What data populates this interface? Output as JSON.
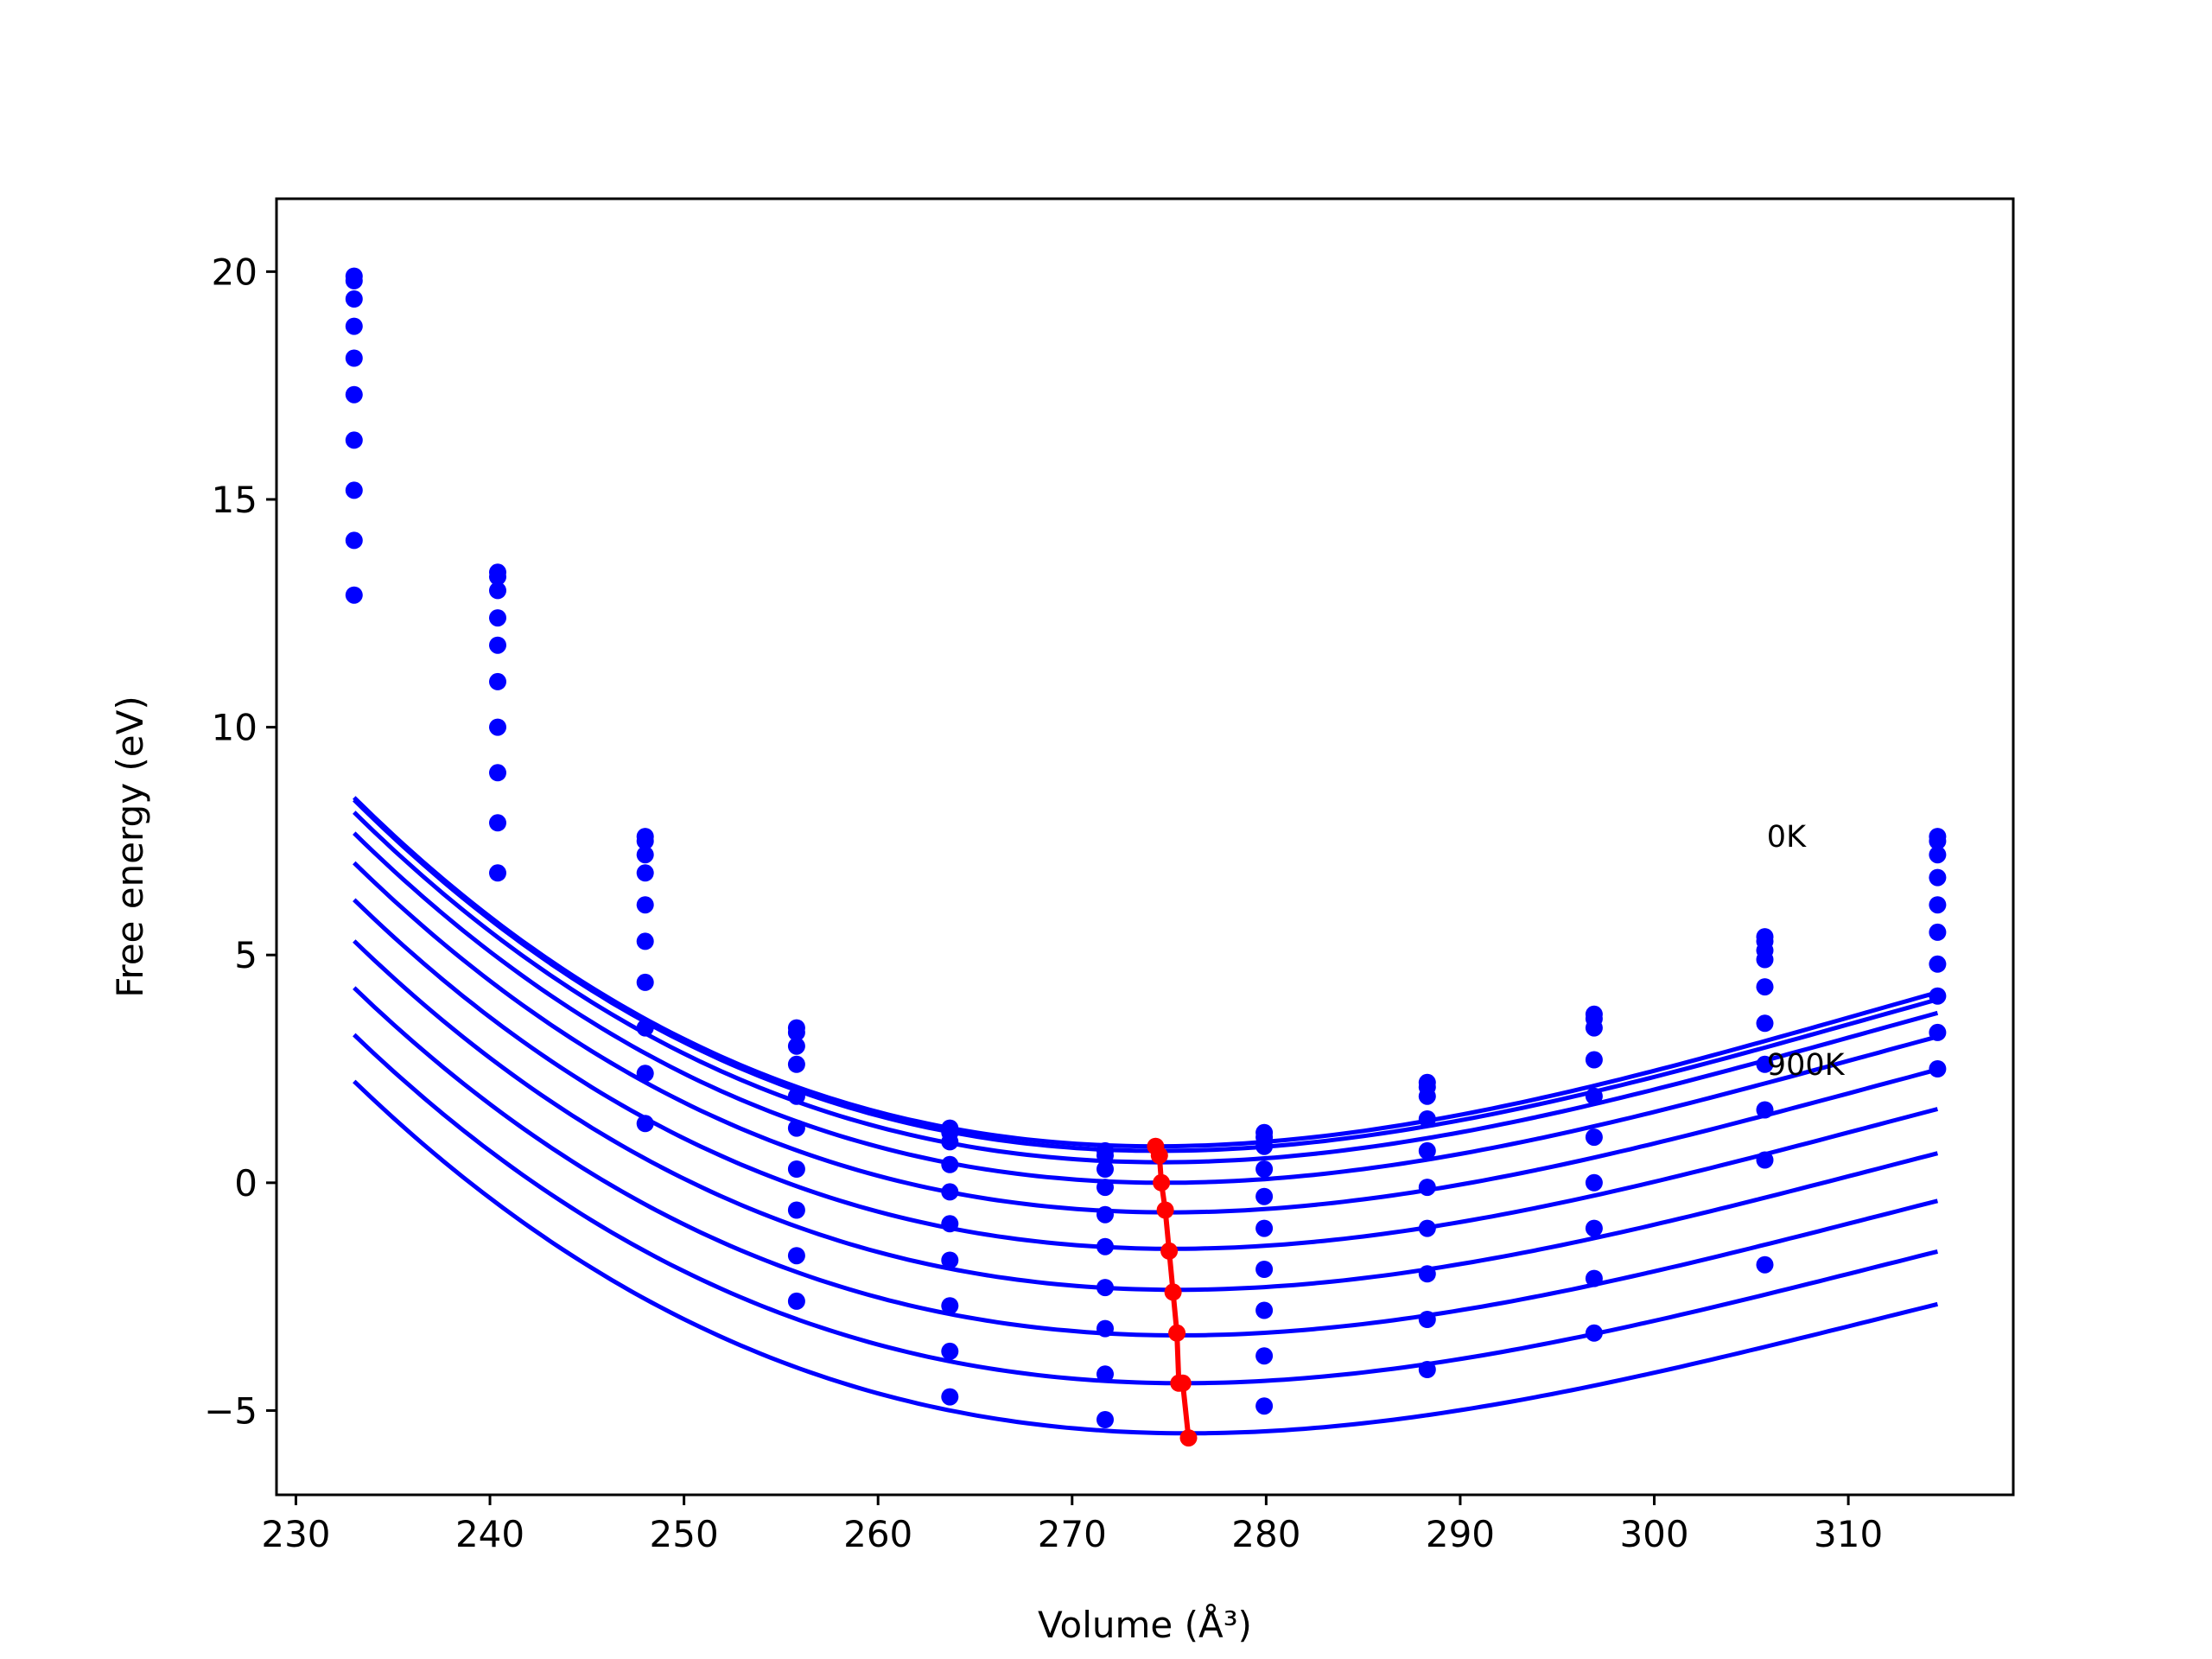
{
  "chart_data": {
    "type": "line",
    "xlabel": "Volume (Å³)",
    "ylabel": "Free energy (eV)",
    "xlim": [
      229,
      318.5
    ],
    "ylim": [
      -6.85,
      21.6
    ],
    "x_ticks": [
      230,
      240,
      250,
      260,
      270,
      280,
      290,
      300,
      310
    ],
    "y_ticks": [
      -5,
      0,
      5,
      10,
      15,
      20
    ],
    "x_tick_labels": [
      "230",
      "240",
      "250",
      "260",
      "270",
      "280",
      "290",
      "300",
      "310"
    ],
    "y_tick_labels": [
      "−5",
      "0",
      "5",
      "10",
      "15",
      "20"
    ],
    "annotations": [
      {
        "text": "0K",
        "x": 305.8,
        "y": 7.6
      },
      {
        "text": "900K",
        "x": 305.8,
        "y": 2.6
      }
    ],
    "volumes": [
      233.0,
      240.4,
      248.0,
      255.8,
      263.7,
      271.7,
      279.9,
      288.3,
      296.9,
      305.7,
      314.6
    ],
    "series": [
      {
        "values": [
          19.9,
          13.4,
          7.6,
          3.4,
          1.2,
          0.7,
          1.1,
          2.2,
          3.7,
          5.4,
          7.6
        ],
        "fit": {
          "v0": 274.3,
          "e0": 0.8,
          "a": 0.00327,
          "b": -2.95e-05
        }
      },
      {
        "values": [
          19.8,
          13.3,
          7.5,
          3.3,
          1.1,
          0.6,
          1.0,
          2.1,
          3.6,
          5.3,
          7.5
        ],
        "fit": {
          "v0": 274.5,
          "e0": 0.7,
          "a": 0.00325,
          "b": -2.95e-05
        }
      },
      {
        "values": [
          19.4,
          13.0,
          7.2,
          3.0,
          0.9,
          0.3,
          0.8,
          1.9,
          3.4,
          5.1,
          7.2
        ],
        "fit": {
          "v0": 274.6,
          "e0": 0.45,
          "a": 0.00322,
          "b": -2.93e-05
        }
      },
      {
        "values": [
          18.8,
          12.4,
          6.8,
          2.6,
          0.4,
          -0.1,
          0.3,
          1.4,
          2.7,
          4.9,
          6.7
        ],
        "fit": {
          "v0": 274.8,
          "e0": 0.0,
          "a": 0.00318,
          "b": -2.9e-05
        }
      },
      {
        "values": [
          18.1,
          11.8,
          6.1,
          1.9,
          -0.2,
          -0.7,
          -0.3,
          0.7,
          1.9,
          4.3,
          6.1
        ],
        "fit": {
          "v0": 275.0,
          "e0": -0.65,
          "a": 0.00314,
          "b": -2.88e-05
        }
      },
      {
        "values": [
          17.3,
          11.0,
          5.3,
          1.2,
          -0.9,
          -1.4,
          -1.0,
          -0.1,
          1.0,
          3.5,
          5.5
        ],
        "fit": {
          "v0": 275.2,
          "e0": -1.45,
          "a": 0.0031,
          "b": -2.85e-05
        }
      },
      {
        "values": [
          16.3,
          10.0,
          4.4,
          0.3,
          -1.7,
          -2.3,
          -1.9,
          -1.0,
          0.0,
          2.6,
          4.8
        ],
        "fit": {
          "v0": 275.4,
          "e0": -2.35,
          "a": 0.00306,
          "b": -2.83e-05
        }
      },
      {
        "values": [
          15.2,
          9.0,
          3.4,
          -0.6,
          -2.7,
          -3.2,
          -2.8,
          -2.0,
          -1.0,
          1.6,
          4.1
        ],
        "fit": {
          "v0": 275.5,
          "e0": -3.35,
          "a": 0.00303,
          "b": -2.81e-05
        }
      },
      {
        "values": [
          14.1,
          7.9,
          2.4,
          -1.6,
          -3.7,
          -4.2,
          -3.8,
          -3.0,
          -2.1,
          0.5,
          3.3
        ],
        "fit": {
          "v0": 275.7,
          "e0": -4.4,
          "a": 0.003,
          "b": -2.8e-05
        }
      },
      {
        "values": [
          12.9,
          6.8,
          1.3,
          -2.6,
          -4.7,
          -5.2,
          -4.9,
          -4.1,
          -3.3,
          -1.8,
          2.5
        ],
        "fit": {
          "v0": 276.0,
          "e0": -5.5,
          "a": 0.00298,
          "b": -2.79e-05
        }
      }
    ],
    "equilibrium": {
      "x": [
        274.3,
        274.5,
        274.6,
        274.8,
        275.0,
        275.2,
        275.4,
        275.5,
        275.7,
        276.0
      ],
      "y": [
        0.8,
        0.6,
        0.0,
        -0.6,
        -1.5,
        -2.4,
        -3.3,
        -4.4,
        -4.4,
        -5.6
      ]
    },
    "colors": {
      "curves": "#0000ff",
      "points": "#0000ff",
      "equilibrium": "#ff0000",
      "axes": "#000000"
    }
  }
}
